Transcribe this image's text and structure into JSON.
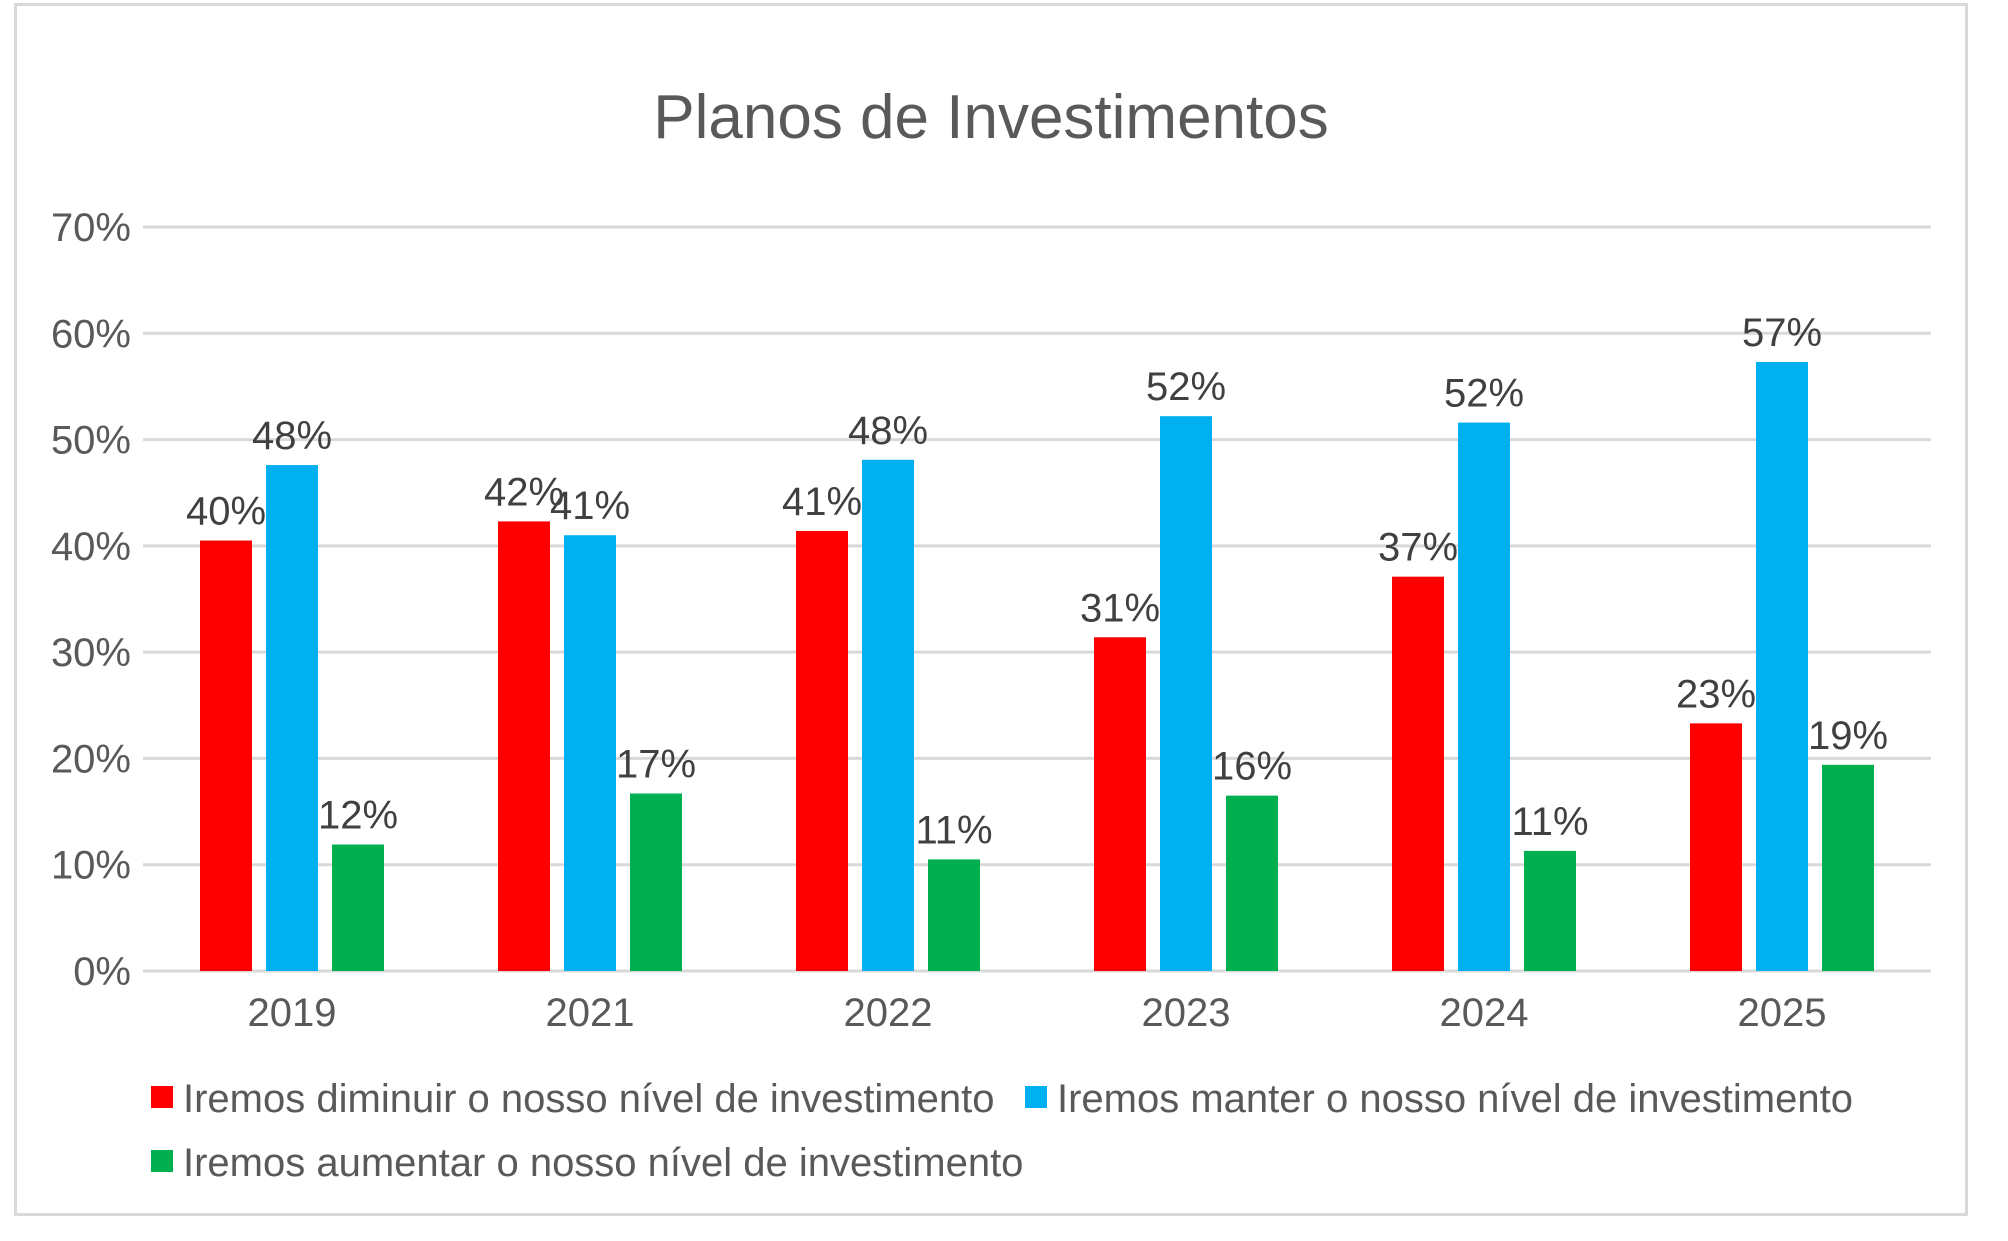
{
  "chart_data": {
    "type": "bar",
    "title": "Planos de Investimentos",
    "categories": [
      "2019",
      "2021",
      "2022",
      "2023",
      "2024",
      "2025"
    ],
    "ylim": [
      0,
      70
    ],
    "yticks": [
      0,
      10,
      20,
      30,
      40,
      50,
      60,
      70
    ],
    "ytick_labels": [
      "0%",
      "10%",
      "20%",
      "30%",
      "40%",
      "50%",
      "60%",
      "70%"
    ],
    "grid": true,
    "legend_position": "bottom",
    "series": [
      {
        "name": "Iremos diminuir o nosso nível de investimento",
        "color": "#ff0000",
        "values": [
          40.5,
          42.3,
          41.4,
          31.4,
          37.1,
          23.3
        ],
        "labels": [
          "40%",
          "42%",
          "41%",
          "31%",
          "37%",
          "23%"
        ]
      },
      {
        "name": "Iremos manter o nosso nível de investimento",
        "color": "#00b0f0",
        "values": [
          47.6,
          41.0,
          48.1,
          52.2,
          51.6,
          57.3
        ],
        "labels": [
          "48%",
          "41%",
          "48%",
          "52%",
          "52%",
          "57%"
        ]
      },
      {
        "name": "Iremos aumentar o nosso nível de investimento",
        "color": "#00b050",
        "values": [
          11.9,
          16.7,
          10.5,
          16.5,
          11.3,
          19.4
        ],
        "labels": [
          "12%",
          "17%",
          "11%",
          "16%",
          "11%",
          "19%"
        ]
      }
    ]
  }
}
